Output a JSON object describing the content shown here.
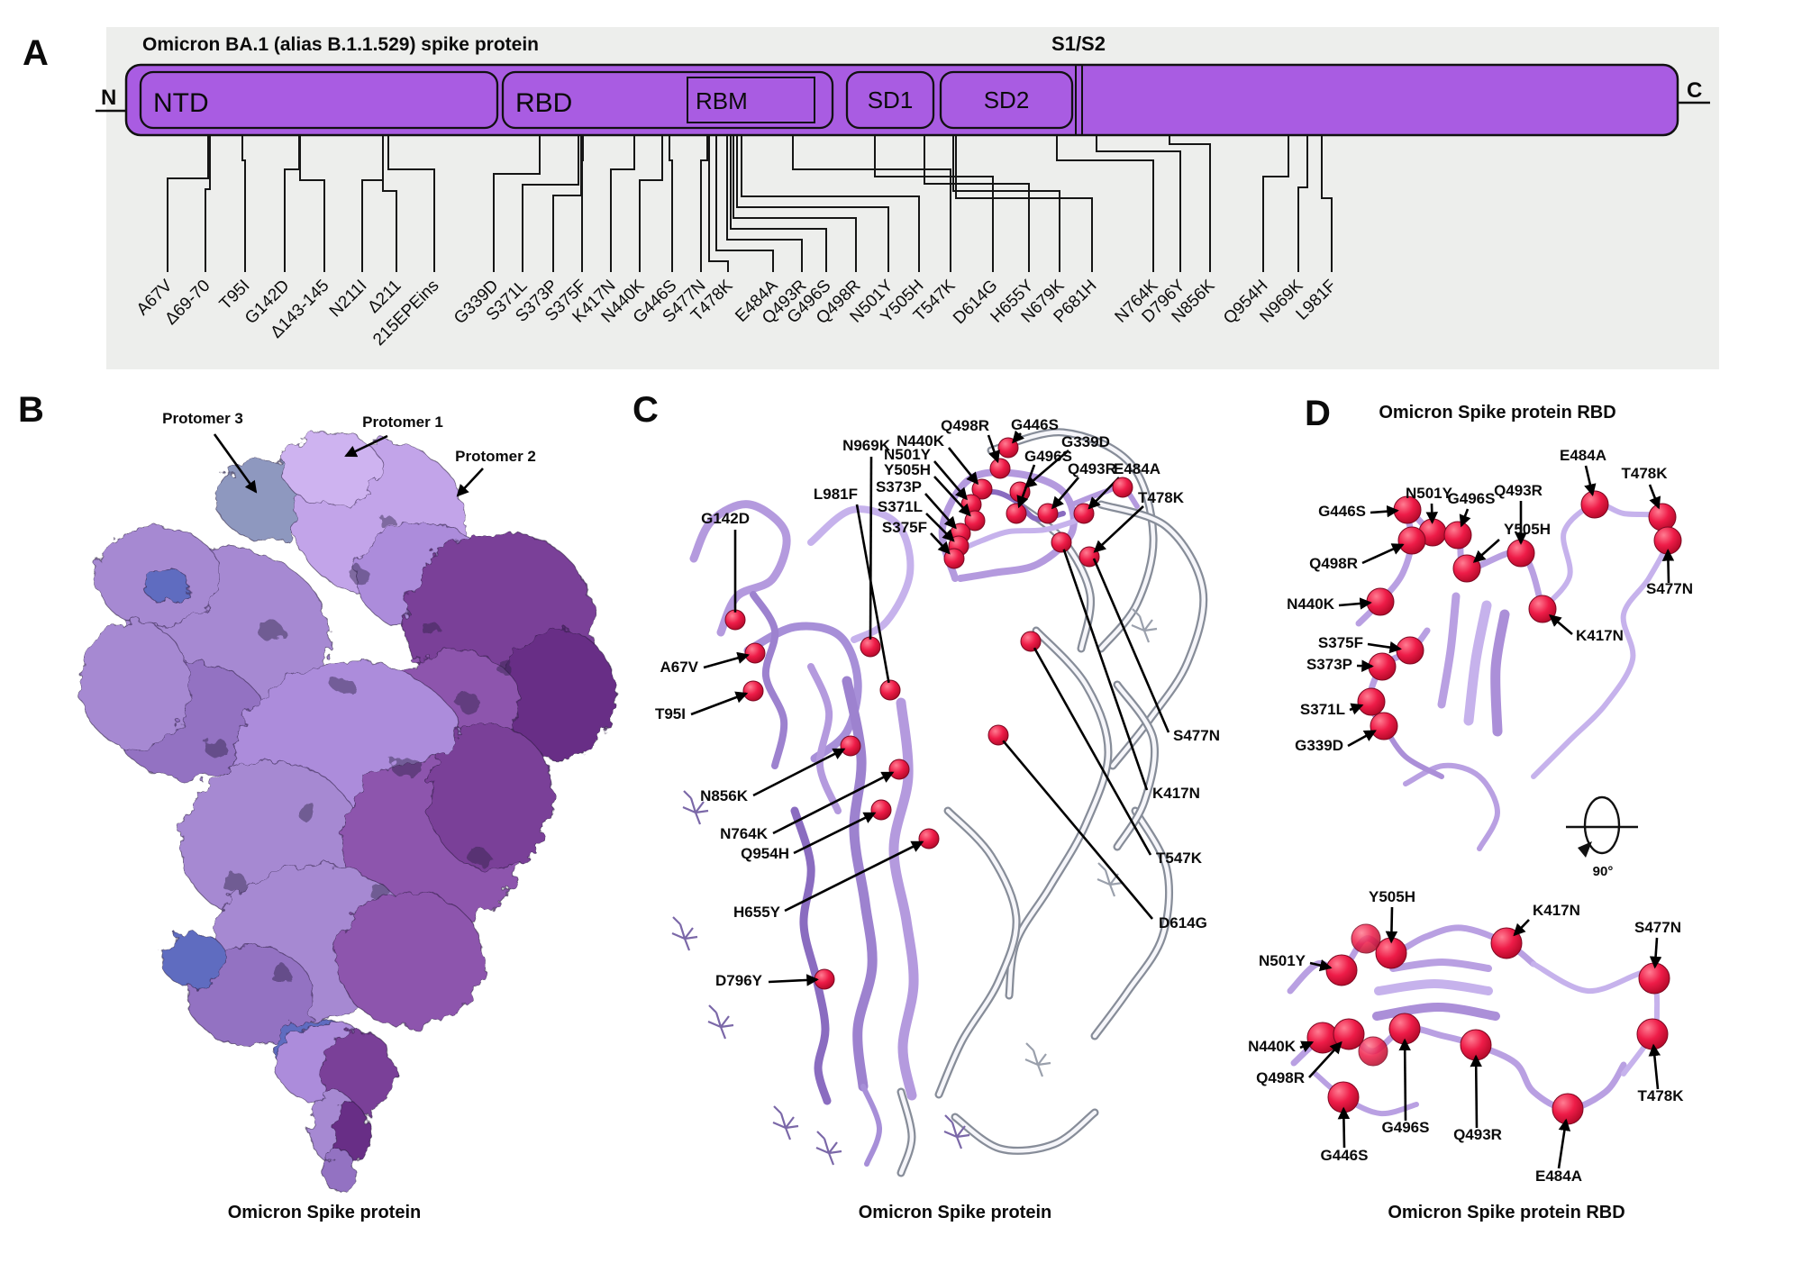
{
  "colors": {
    "domain_fill": "#a95ce2",
    "panel_bg": "#edeeec",
    "sphere_red": "#e8123f",
    "ribbon_purple": "#b49ade",
    "ribbon_dark": "#8a6cc0",
    "ribbon_light": "#c6b2ec",
    "ghost_gray": "#878d99",
    "protomer1_fill": "#c2a4e9",
    "protomer2_fill": "#7a3f98",
    "protomer3_fill": "#a689d2",
    "blue_accent": "#5f6cc0"
  },
  "panelA": {
    "label": "A",
    "title": "Omicron BA.1 (alias B.1.1.529) spike protein",
    "n_terminus": "N",
    "c_terminus": "C",
    "cleavage": "S1/S2",
    "domains": {
      "ntd": "NTD",
      "rbd": "RBD",
      "rbm": "RBM",
      "sd1": "SD1",
      "sd2": "SD2"
    },
    "mutations": [
      "A67V",
      "Δ69-70",
      "T95I",
      "G142D",
      "Δ143-145",
      "N211I",
      "Δ211",
      "215EPEins",
      "G339D",
      "S371L",
      "S373P",
      "S375F",
      "K417N",
      "N440K",
      "G446S",
      "S477N",
      "T478K",
      "E484A",
      "Q493R",
      "G496S",
      "Q498R",
      "N501Y",
      "Y505H",
      "T547K",
      "D614G",
      "H655Y",
      "N679K",
      "P681H",
      "N764K",
      "D796Y",
      "N856K",
      "Q954H",
      "N969K",
      "L981F"
    ]
  },
  "panelB": {
    "label": "B",
    "caption": "Omicron Spike protein",
    "annotations": [
      [
        "Protomer 3",
        225,
        470,
        "middle",
        238,
        482,
        284,
        546,
        1,
        0
      ],
      [
        "Protomer 1",
        447,
        474,
        "middle",
        430,
        484,
        384,
        506,
        1,
        0
      ],
      [
        "Protomer 2",
        550,
        512,
        "middle",
        536,
        520,
        508,
        550,
        1,
        0
      ]
    ]
  },
  "panelC": {
    "label": "C",
    "caption": "Omicron Spike protein",
    "annotations": [
      [
        "Q498R",
        1098,
        478,
        "end",
        1097,
        483,
        1110,
        520,
        1,
        1
      ],
      [
        "G446S",
        1122,
        477,
        "start",
        1133,
        481,
        1119,
        497,
        1,
        1
      ],
      [
        "G339D",
        1178,
        496,
        "start",
        1186,
        500,
        1132,
        546,
        1,
        1
      ],
      [
        "G496S",
        1137,
        512,
        "start",
        1148,
        516,
        1128,
        570,
        1,
        1
      ],
      [
        "Q493R",
        1185,
        526,
        "start",
        1197,
        530,
        1163,
        570,
        1,
        1
      ],
      [
        "E484A",
        1236,
        526,
        "start",
        1242,
        530,
        1203,
        570,
        1,
        1
      ],
      [
        "T478K",
        1263,
        558,
        "start",
        1269,
        562,
        1209,
        618,
        1,
        1
      ],
      [
        "N440K",
        1048,
        495,
        "end",
        1053,
        497,
        1090,
        543,
        1,
        1
      ],
      [
        "N501Y",
        1033,
        510,
        "end",
        1037,
        512,
        1078,
        560,
        1,
        1
      ],
      [
        "Y505H",
        1033,
        527,
        "end",
        1037,
        529,
        1082,
        578,
        1,
        1
      ],
      [
        "S373P",
        1023,
        546,
        "end",
        1027,
        548,
        1066,
        592,
        1,
        1
      ],
      [
        "S371L",
        1024,
        568,
        "end",
        1028,
        570,
        1064,
        606,
        1,
        1
      ],
      [
        "S375F",
        1029,
        591,
        "end",
        1033,
        592,
        1059,
        620,
        1,
        1
      ],
      [
        "N969K",
        988,
        500,
        "end",
        967,
        507,
        966,
        718,
        0,
        1
      ],
      [
        "L981F",
        952,
        554,
        "end",
        951,
        560,
        988,
        766,
        0,
        1
      ],
      [
        "G142D",
        832,
        581,
        "end",
        816,
        588,
        816,
        688,
        0,
        1
      ],
      [
        "A67V",
        775,
        746,
        "end",
        781,
        741,
        838,
        725,
        1,
        1
      ],
      [
        "T95I",
        761,
        798,
        "end",
        767,
        793,
        836,
        767,
        1,
        1
      ],
      [
        "N856K",
        830,
        889,
        "end",
        836,
        883,
        944,
        828,
        1,
        1
      ],
      [
        "N764K",
        852,
        931,
        "end",
        858,
        925,
        998,
        854,
        1,
        1
      ],
      [
        "Q954H",
        876,
        953,
        "end",
        881,
        947,
        978,
        899,
        1,
        1
      ],
      [
        "H655Y",
        866,
        1018,
        "end",
        871,
        1011,
        1031,
        931,
        1,
        1
      ],
      [
        "D796Y",
        846,
        1094,
        "end",
        853,
        1090,
        915,
        1087,
        1,
        1
      ],
      [
        "S477N",
        1302,
        822,
        "start",
        1297,
        813,
        1214,
        620,
        0,
        0
      ],
      [
        "K417N",
        1279,
        886,
        "start",
        1273,
        877,
        1178,
        602,
        0,
        1
      ],
      [
        "T547K",
        1283,
        958,
        "start",
        1277,
        949,
        1144,
        712,
        0,
        1
      ],
      [
        "D614G",
        1286,
        1030,
        "start",
        1279,
        1020,
        1108,
        816,
        0,
        1
      ]
    ],
    "extra_spheres": [
      [
        1246,
        541
      ]
    ]
  },
  "panelD": {
    "label": "D",
    "title": "Omicron Spike protein RBD",
    "caption": "Omicron Spike protein RBD",
    "rotation_label": "90°",
    "top_annotations": [
      [
        "G446S",
        1516,
        573,
        "end",
        1521,
        569,
        1562,
        566,
        1,
        1
      ],
      [
        "N501Y",
        1586,
        553,
        "middle",
        1589,
        559,
        1590,
        591,
        1,
        1
      ],
      [
        "G496S",
        1633,
        559,
        "middle",
        1629,
        565,
        1618,
        594,
        1,
        1
      ],
      [
        "Q493R",
        1685,
        550,
        "middle",
        1688,
        556,
        1688,
        614,
        1,
        1
      ],
      [
        "Y505H",
        1669,
        593,
        "start",
        1664,
        599,
        1628,
        631,
        1,
        1
      ],
      [
        "Q498R",
        1507,
        631,
        "end",
        1512,
        625,
        1567,
        600,
        1,
        1
      ],
      [
        "N440K",
        1481,
        676,
        "end",
        1486,
        672,
        1532,
        668,
        1,
        1
      ],
      [
        "E484A",
        1757,
        511,
        "middle",
        1760,
        517,
        1770,
        560,
        1,
        1
      ],
      [
        "T478K",
        1825,
        531,
        "middle",
        1831,
        538,
        1845,
        574,
        1,
        1
      ],
      [
        "S477N",
        1853,
        659,
        "middle",
        1852,
        647,
        1851,
        600,
        1,
        1
      ],
      [
        "K417N",
        1749,
        711,
        "start",
        1745,
        704,
        1712,
        676,
        1,
        1
      ],
      [
        "S375F",
        1513,
        719,
        "end",
        1518,
        715,
        1565,
        722,
        1,
        1
      ],
      [
        "S373P",
        1501,
        743,
        "end",
        1506,
        739,
        1534,
        740,
        1,
        1
      ],
      [
        "S371L",
        1493,
        793,
        "end",
        1498,
        788,
        1522,
        779,
        1,
        1
      ],
      [
        "G339D",
        1491,
        833,
        "end",
        1496,
        828,
        1536,
        806,
        1,
        1
      ]
    ],
    "top_extra_spheres": [],
    "bottom_annotations": [
      [
        "Y505H",
        1545,
        1001,
        "middle",
        1545,
        1007,
        1544,
        1058,
        1,
        1
      ],
      [
        "K417N",
        1701,
        1016,
        "start",
        1697,
        1021,
        1672,
        1047,
        1,
        1
      ],
      [
        "S477N",
        1840,
        1035,
        "middle",
        1839,
        1041,
        1836,
        1086,
        1,
        1
      ],
      [
        "N501Y",
        1449,
        1072,
        "end",
        1454,
        1069,
        1489,
        1077,
        1,
        1
      ],
      [
        "N440K",
        1438,
        1167,
        "end",
        1443,
        1163,
        1468,
        1152,
        1,
        1
      ],
      [
        "Q498R",
        1448,
        1202,
        "end",
        1453,
        1196,
        1497,
        1148,
        1,
        1
      ],
      [
        "G496S",
        1560,
        1257,
        "middle",
        1560,
        1244,
        1559,
        1142,
        1,
        1
      ],
      [
        "Q493R",
        1640,
        1265,
        "middle",
        1639,
        1252,
        1638,
        1160,
        1,
        1
      ],
      [
        "T478K",
        1843,
        1222,
        "middle",
        1840,
        1209,
        1834,
        1148,
        1,
        1
      ],
      [
        "G446S",
        1492,
        1288,
        "middle",
        1492,
        1274,
        1491,
        1218,
        1,
        1
      ],
      [
        "E484A",
        1730,
        1311,
        "middle",
        1730,
        1297,
        1740,
        1231,
        1,
        1
      ]
    ],
    "bottom_extra_spheres": [
      [
        1516,
        1042
      ],
      [
        1524,
        1167
      ]
    ]
  }
}
